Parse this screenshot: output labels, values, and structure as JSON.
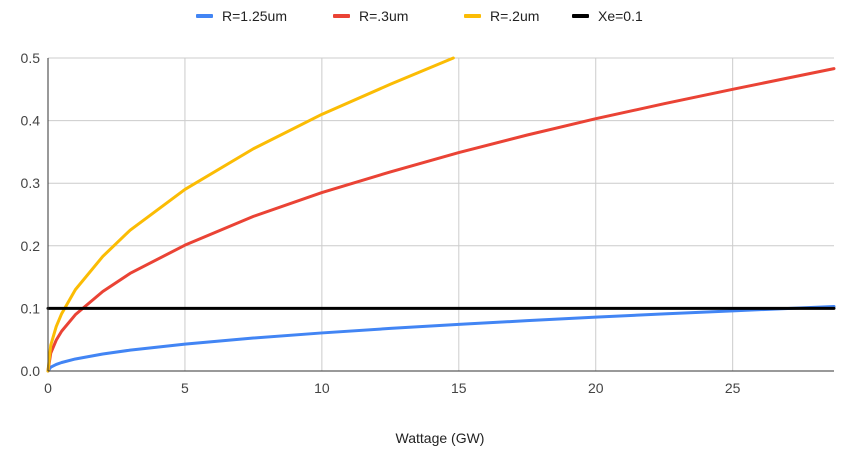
{
  "chart_data": {
    "type": "line",
    "xlabel": "Wattage (GW)",
    "ylabel": "",
    "xlim": [
      0,
      28.7
    ],
    "ylim": [
      0,
      0.5
    ],
    "x_ticks": [
      "0",
      "5",
      "10",
      "15",
      "20",
      "25"
    ],
    "y_ticks": [
      "0.0",
      "0.1",
      "0.2",
      "0.3",
      "0.4",
      "0.5"
    ],
    "grid": true,
    "legend_position": "top",
    "series": [
      {
        "name": "R=1.25um",
        "color": "#4285f4",
        "x": [
          0,
          0.1,
          0.3,
          0.5,
          1,
          2,
          3,
          5,
          7.5,
          10,
          12.5,
          15,
          17.5,
          20,
          22.5,
          25,
          28.7
        ],
        "values": [
          0,
          0.0061,
          0.0105,
          0.0136,
          0.0192,
          0.0272,
          0.0333,
          0.043,
          0.0527,
          0.0608,
          0.068,
          0.0745,
          0.0804,
          0.086,
          0.0912,
          0.0961,
          0.103
        ]
      },
      {
        "name": "R=.3um",
        "color": "#ea4335",
        "x": [
          0,
          0.1,
          0.3,
          0.5,
          1,
          2,
          3,
          5,
          7.5,
          10,
          12.5,
          15,
          17.5,
          20,
          22.5,
          25,
          28.7
        ],
        "values": [
          0,
          0.0285,
          0.0493,
          0.0637,
          0.09,
          0.127,
          0.156,
          0.201,
          0.247,
          0.285,
          0.318,
          0.349,
          0.377,
          0.403,
          0.427,
          0.45,
          0.483
        ]
      },
      {
        "name": "R=.2um",
        "color": "#fbbc04",
        "x": [
          0,
          0.1,
          0.3,
          0.5,
          1,
          2,
          3,
          5,
          7.5,
          10,
          12.5,
          14.8
        ],
        "values": [
          0,
          0.041,
          0.071,
          0.0917,
          0.13,
          0.183,
          0.225,
          0.29,
          0.355,
          0.41,
          0.458,
          0.5
        ]
      },
      {
        "name": "Xe=0.1",
        "color": "#000000",
        "x": [
          0,
          28.7
        ],
        "values": [
          0.1,
          0.1
        ]
      }
    ]
  }
}
